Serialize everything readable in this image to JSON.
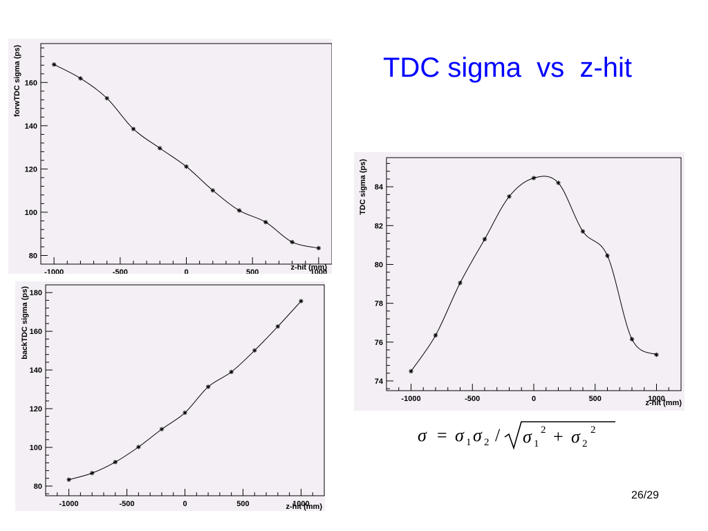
{
  "slide": {
    "title": "TDC sigma  vs  z-hit",
    "page_number": "26/29"
  },
  "formula": {
    "lhs": "σ",
    "equals": "=",
    "numerator_a": "σ",
    "numerator_a_sub": "1",
    "numerator_b": "σ",
    "numerator_b_sub": "2",
    "divide": "/",
    "term1": "σ",
    "term1_sub": "1",
    "term1_sup": "2",
    "plus": "+",
    "term2": "σ",
    "term2_sub": "2",
    "term2_sup": "2"
  },
  "chart_data": [
    {
      "type": "line",
      "id": "forw",
      "xlabel": "z-hit (mm)",
      "ylabel": "forwTDC sigma  (ps)",
      "xlim": [
        -1100,
        1100
      ],
      "ylim": [
        76,
        178
      ],
      "xticks": [
        -1000,
        -500,
        0,
        500,
        1000
      ],
      "xtick_labels": [
        "-1000",
        "-500",
        "0",
        "500",
        "1000"
      ],
      "yticks": [
        80,
        100,
        120,
        140,
        160
      ],
      "ytick_labels": [
        "80",
        "100",
        "120",
        "140",
        "160"
      ],
      "grid": false,
      "marker": "asterisk",
      "x": [
        -1000,
        -800,
        -600,
        -400,
        -200,
        0,
        200,
        400,
        600,
        800,
        1000
      ],
      "y": [
        168.3,
        161.9,
        152.7,
        138.5,
        129.6,
        121.1,
        110.1,
        100.8,
        95.4,
        86.2,
        83.4
      ]
    },
    {
      "type": "line",
      "id": "back",
      "xlabel": "z-hit (mm)",
      "ylabel": "backTDC sigma (ps)",
      "xlim": [
        -1200,
        1200
      ],
      "ylim": [
        75,
        184
      ],
      "xticks": [
        -1000,
        -500,
        0,
        500,
        1000
      ],
      "xtick_labels": [
        "-1000",
        "-500",
        "0",
        "500",
        "1000"
      ],
      "yticks": [
        80,
        100,
        120,
        140,
        160,
        180
      ],
      "ytick_labels": [
        "80",
        "100",
        "120",
        "140",
        "160",
        "180"
      ],
      "grid": false,
      "marker": "asterisk",
      "x": [
        -1000,
        -800,
        -600,
        -400,
        -200,
        0,
        200,
        400,
        600,
        800,
        1000
      ],
      "y": [
        83.3,
        86.7,
        92.4,
        100.2,
        109.4,
        117.9,
        131.3,
        139.0,
        150.1,
        162.5,
        175.6
      ]
    },
    {
      "type": "line",
      "id": "combined",
      "xlabel": "z-hit (mm)",
      "ylabel": "TDC sigma (ps)",
      "xlim": [
        -1200,
        1200
      ],
      "ylim": [
        73.5,
        85.5
      ],
      "xticks": [
        -1000,
        -500,
        0,
        500,
        1000
      ],
      "xtick_labels": [
        "-1000",
        "-500",
        "0",
        "500",
        "1000"
      ],
      "yticks": [
        74,
        76,
        78,
        80,
        82,
        84
      ],
      "ytick_labels": [
        "74",
        "76",
        "78",
        "80",
        "82",
        "84"
      ],
      "grid": false,
      "marker": "asterisk",
      "x": [
        -1000,
        -800,
        -600,
        -400,
        -200,
        0,
        200,
        400,
        600,
        800,
        1000
      ],
      "y": [
        74.5,
        76.35,
        79.05,
        81.3,
        83.5,
        84.45,
        84.2,
        81.7,
        80.45,
        76.15,
        75.35
      ]
    }
  ]
}
